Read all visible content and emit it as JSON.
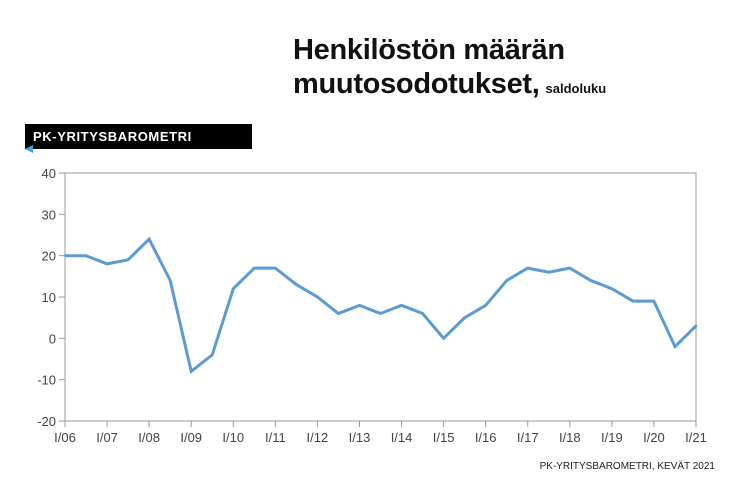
{
  "chart_data": {
    "type": "line",
    "title_lines": [
      "Henkilöstön määrän",
      "muutosodotukset,"
    ],
    "subtitle": "saldoluku",
    "badge": "PK-YRITYSBAROMETRI",
    "source": "PK-YRITYSBAROMETRI, KEVÄT 2021",
    "xlabel": "",
    "ylabel": "",
    "ylim": [
      -20,
      40
    ],
    "yticks": [
      40,
      30,
      20,
      10,
      0,
      -10,
      -20
    ],
    "xtick_labels": [
      "I/06",
      "I/07",
      "I/08",
      "I/09",
      "I/10",
      "I/11",
      "I/12",
      "I/13",
      "I/14",
      "I/15",
      "I/16",
      "I/17",
      "I/18",
      "I/19",
      "I/20",
      "I/21"
    ],
    "x_periods": [
      "I/06",
      "II/06",
      "I/07",
      "II/07",
      "I/08",
      "II/08",
      "I/09",
      "II/09",
      "I/10",
      "II/10",
      "I/11",
      "II/11",
      "I/12",
      "II/12",
      "I/13",
      "II/13",
      "I/14",
      "II/14",
      "I/15",
      "II/15",
      "I/16",
      "II/16",
      "I/17",
      "II/17",
      "I/18",
      "II/18",
      "I/19",
      "II/19",
      "I/20",
      "II/20",
      "I/21"
    ],
    "series": [
      {
        "values": [
          20,
          20,
          18,
          19,
          24,
          14,
          -8,
          -4,
          12,
          17,
          17,
          13,
          10,
          6,
          8,
          6,
          8,
          6,
          0,
          5,
          8,
          14,
          17,
          16,
          17,
          14,
          12,
          9,
          9,
          -2,
          3
        ],
        "color": "#5b9bd5"
      }
    ],
    "grid": false,
    "axis_color": "#9a9a9a",
    "tick_label_color": "#444444"
  }
}
